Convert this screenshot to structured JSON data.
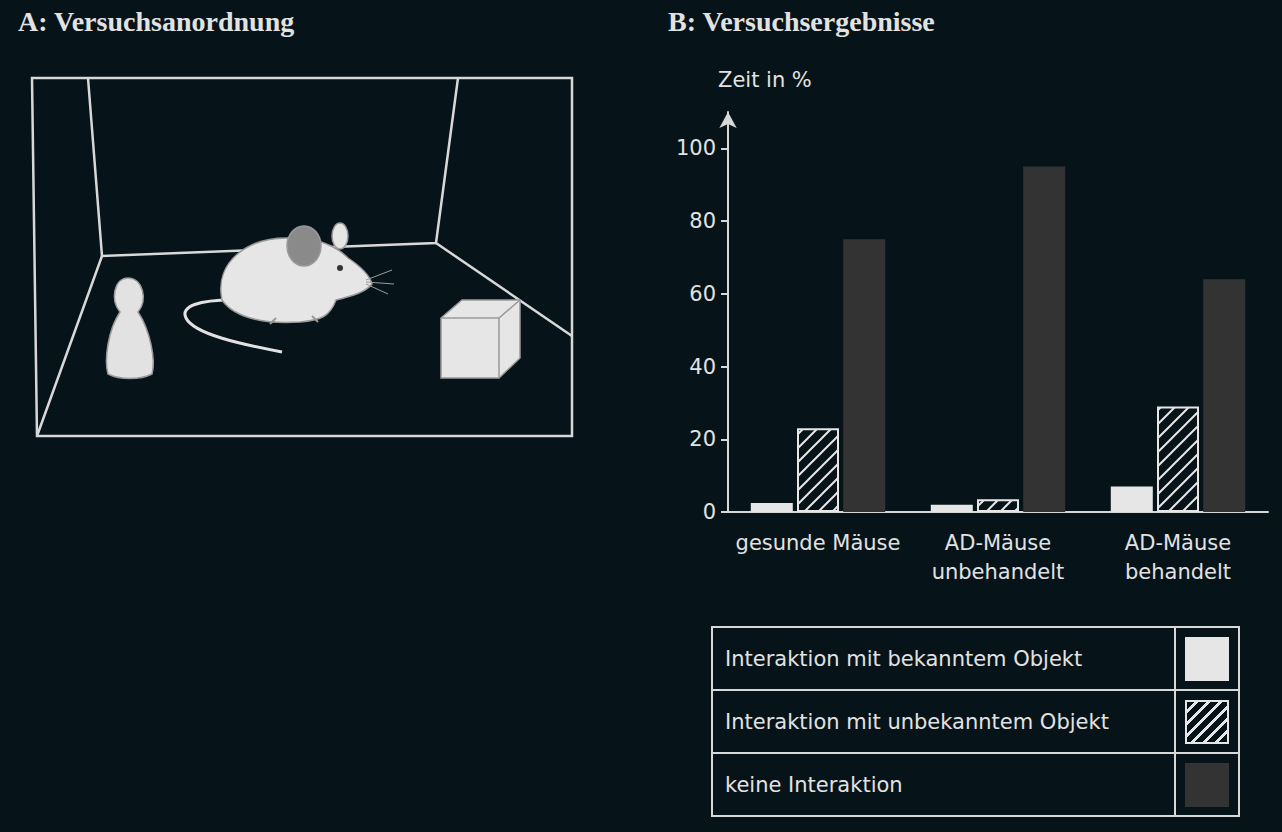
{
  "setup": {
    "title": "A: Versuchsanordnung"
  },
  "chart_data": {
    "type": "bar",
    "title": "B: Versuchsergebnisse",
    "ylabel": "Zeit in %",
    "categories": [
      "gesunde Mäuse",
      "AD-Mäuse\nunbehandelt",
      "AD-Mäuse\nbehandelt"
    ],
    "series": [
      {
        "name": "Interaktion mit bekanntem Objekt",
        "color": "#e6e6e6",
        "values": [
          2.5,
          2,
          7
        ]
      },
      {
        "name": "Interaktion mit unbekanntem Objekt",
        "color": "#e6e6e6",
        "values": [
          23,
          3.5,
          29
        ]
      },
      {
        "name": "keine Interaktion",
        "color": "#333333",
        "values": [
          75,
          95,
          64
        ]
      }
    ],
    "ylim": [
      0,
      110
    ],
    "yticks": [
      0,
      20,
      40,
      60,
      80,
      100
    ],
    "grid": false,
    "legend": "bottom-right"
  }
}
